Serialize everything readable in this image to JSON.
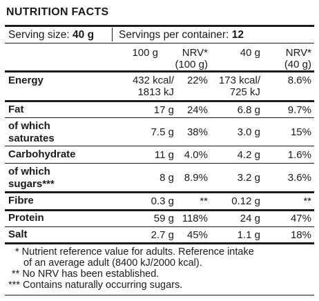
{
  "title": "NUTRITION FACTS",
  "serving": {
    "size_label": "Serving size:",
    "size_value": "40 g",
    "per_label": "Servings per container:",
    "per_value": "12"
  },
  "headers": {
    "col1": "100 g",
    "col2_line1": "NRV*",
    "col2_line2": "(100 g)",
    "col3": "40 g",
    "col4_line1": "NRV*",
    "col4_line2": "(40 g)"
  },
  "rows": [
    {
      "label1": "Energy",
      "label2": "",
      "c1a": "432 kcal/",
      "c1b": "1813 kJ",
      "c2": "22%",
      "c3a": "173 kcal/",
      "c3b": "725 kJ",
      "c4": "8.6%"
    },
    {
      "label1": "Fat",
      "label2": "",
      "c1a": "17 g",
      "c1b": "",
      "c2": "24%",
      "c3a": "6.8 g",
      "c3b": "",
      "c4": "9.7%"
    },
    {
      "label1": "of which",
      "label2": "saturates",
      "c1a": "7.5 g",
      "c1b": "",
      "c2": "38%",
      "c3a": "3.0 g",
      "c3b": "",
      "c4": "15%"
    },
    {
      "label1": "Carbohydrate",
      "label2": "",
      "c1a": "11 g",
      "c1b": "",
      "c2": "4.0%",
      "c3a": "4.2 g",
      "c3b": "",
      "c4": "1.6%"
    },
    {
      "label1": "of which",
      "label2": "sugars***",
      "c1a": "8 g",
      "c1b": "",
      "c2": "8.9%",
      "c3a": "3.2 g",
      "c3b": "",
      "c4": "3.6%"
    },
    {
      "label1": "Fibre",
      "label2": "",
      "c1a": "0.3 g",
      "c1b": "",
      "c2": "**",
      "c3a": "0.12 g",
      "c3b": "",
      "c4": "**"
    },
    {
      "label1": "Protein",
      "label2": "",
      "c1a": "59 g",
      "c1b": "",
      "c2": "118%",
      "c3a": "24 g",
      "c3b": "",
      "c4": "47%"
    },
    {
      "label1": "Salt",
      "label2": "",
      "c1a": "2.7 g",
      "c1b": "",
      "c2": "45%",
      "c3a": "1.1 g",
      "c3b": "",
      "c4": "18%"
    }
  ],
  "footnotes": {
    "line1": "* Nutrient reference value for adults. Reference intake",
    "line2": "of an average adult (8400 kJ/2000 kcal).",
    "line3": "** No NRV has been established.",
    "line4": "*** Contains naturally occurring sugars."
  }
}
